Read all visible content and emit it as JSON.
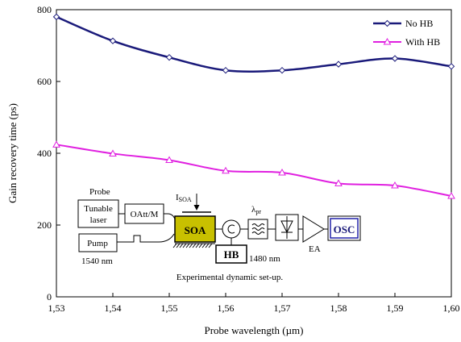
{
  "chart_data": {
    "type": "line",
    "xlabel": "Probe wavelength (µm)",
    "ylabel": "Gain recovery time (ps)",
    "xlim": [
      1.53,
      1.6
    ],
    "ylim": [
      0,
      800
    ],
    "x_ticks": [
      "1,53",
      "1,54",
      "1,55",
      "1,56",
      "1,57",
      "1,58",
      "1,59",
      "1,60"
    ],
    "y_ticks": [
      "0",
      "200",
      "400",
      "600",
      "800"
    ],
    "x": [
      1.53,
      1.54,
      1.55,
      1.56,
      1.57,
      1.58,
      1.59,
      1.6
    ],
    "grid": false,
    "legend": "top-right",
    "series": [
      {
        "name": "No HB",
        "color": "#1a1a7a",
        "marker": "diamond",
        "values": [
          780,
          713,
          667,
          631,
          631,
          648,
          664,
          642
        ]
      },
      {
        "name": "With HB",
        "color": "#e020e0",
        "marker": "triangle",
        "values": [
          424,
          399,
          381,
          351,
          346,
          316,
          310,
          281
        ]
      }
    ]
  },
  "inset": {
    "caption": "Experimental dynamic set-up.",
    "probe_label": "Probe",
    "tunable_laser_line1": "Tunable",
    "tunable_laser_line2": "laser",
    "pump_label": "Pump",
    "pump_wavelength": "1540 nm",
    "oatt_label": "OAtt/M",
    "isoa_main": "I",
    "isoa_sub": "SOA",
    "soa_label": "SOA",
    "hb_label": "HB",
    "hb_wavelength": "1480 nm",
    "lambda_main": "λ",
    "lambda_sub": "pr",
    "ea_label": "EA",
    "osc_label": "OSC",
    "soa_color": "#c8c000"
  }
}
